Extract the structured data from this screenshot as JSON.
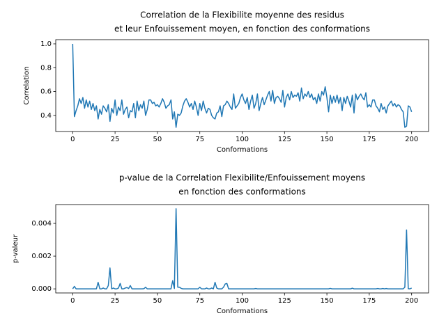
{
  "chart_data": [
    {
      "type": "line",
      "title": [
        "Correlation de la Flexibilite moyenne des residus",
        "et leur Enfouissement moyen, en fonction des conformations"
      ],
      "xlabel": "Conformations",
      "ylabel": "Correlation",
      "xlim": [
        -10,
        210
      ],
      "ylim": [
        0.265,
        1.035
      ],
      "xticks": [
        0,
        25,
        50,
        75,
        100,
        125,
        150,
        175,
        200
      ],
      "yticks": [
        0.4,
        0.6,
        0.8,
        {
          "value": 1,
          "label": "1.0"
        }
      ],
      "x": [
        0,
        1,
        2,
        3,
        4,
        5,
        6,
        7,
        8,
        9,
        10,
        11,
        12,
        13,
        14,
        15,
        16,
        17,
        18,
        19,
        20,
        21,
        22,
        23,
        24,
        25,
        26,
        27,
        28,
        29,
        30,
        31,
        32,
        33,
        34,
        35,
        36,
        37,
        38,
        39,
        40,
        41,
        42,
        43,
        44,
        45,
        46,
        47,
        48,
        49,
        50,
        51,
        52,
        53,
        54,
        55,
        56,
        57,
        58,
        59,
        60,
        61,
        62,
        63,
        64,
        65,
        66,
        67,
        68,
        69,
        70,
        71,
        72,
        73,
        74,
        75,
        76,
        77,
        78,
        79,
        80,
        81,
        82,
        83,
        84,
        85,
        86,
        87,
        88,
        89,
        90,
        91,
        92,
        93,
        94,
        95,
        96,
        97,
        98,
        99,
        100,
        101,
        102,
        103,
        104,
        105,
        106,
        107,
        108,
        109,
        110,
        111,
        112,
        113,
        114,
        115,
        116,
        117,
        118,
        119,
        120,
        121,
        122,
        123,
        124,
        125,
        126,
        127,
        128,
        129,
        130,
        131,
        132,
        133,
        134,
        135,
        136,
        137,
        138,
        139,
        140,
        141,
        142,
        143,
        144,
        145,
        146,
        147,
        148,
        149,
        150,
        151,
        152,
        153,
        154,
        155,
        156,
        157,
        158,
        159,
        160,
        161,
        162,
        163,
        164,
        165,
        166,
        167,
        168,
        169,
        170,
        171,
        172,
        173,
        174,
        175,
        176,
        177,
        178,
        179,
        180,
        181,
        182,
        183,
        184,
        185,
        186,
        187,
        188,
        189,
        190,
        191,
        192,
        193,
        194,
        195,
        196,
        197,
        198,
        199,
        200
      ],
      "color": "#1f77b4",
      "values": [
        1.0,
        0.39,
        0.44,
        0.48,
        0.54,
        0.5,
        0.55,
        0.46,
        0.53,
        0.47,
        0.52,
        0.45,
        0.5,
        0.44,
        0.48,
        0.37,
        0.45,
        0.41,
        0.48,
        0.46,
        0.43,
        0.49,
        0.35,
        0.46,
        0.42,
        0.53,
        0.4,
        0.47,
        0.44,
        0.53,
        0.41,
        0.45,
        0.47,
        0.38,
        0.44,
        0.43,
        0.5,
        0.38,
        0.52,
        0.44,
        0.49,
        0.46,
        0.52,
        0.4,
        0.45,
        0.53,
        0.53,
        0.5,
        0.51,
        0.48,
        0.49,
        0.47,
        0.5,
        0.54,
        0.51,
        0.46,
        0.48,
        0.49,
        0.53,
        0.37,
        0.43,
        0.3,
        0.41,
        0.4,
        0.42,
        0.48,
        0.52,
        0.54,
        0.51,
        0.47,
        0.5,
        0.45,
        0.52,
        0.47,
        0.4,
        0.5,
        0.44,
        0.52,
        0.46,
        0.42,
        0.46,
        0.45,
        0.4,
        0.38,
        0.37,
        0.42,
        0.43,
        0.48,
        0.39,
        0.48,
        0.49,
        0.52,
        0.5,
        0.47,
        0.45,
        0.58,
        0.46,
        0.48,
        0.5,
        0.55,
        0.58,
        0.53,
        0.5,
        0.55,
        0.45,
        0.52,
        0.57,
        0.46,
        0.5,
        0.58,
        0.44,
        0.5,
        0.55,
        0.49,
        0.53,
        0.57,
        0.6,
        0.52,
        0.61,
        0.5,
        0.55,
        0.56,
        0.54,
        0.51,
        0.61,
        0.47,
        0.55,
        0.58,
        0.53,
        0.6,
        0.55,
        0.57,
        0.56,
        0.59,
        0.52,
        0.63,
        0.54,
        0.58,
        0.56,
        0.6,
        0.55,
        0.58,
        0.53,
        0.55,
        0.5,
        0.58,
        0.52,
        0.6,
        0.57,
        0.64,
        0.55,
        0.43,
        0.57,
        0.5,
        0.56,
        0.51,
        0.57,
        0.5,
        0.55,
        0.44,
        0.55,
        0.5,
        0.56,
        0.52,
        0.47,
        0.57,
        0.42,
        0.58,
        0.53,
        0.56,
        0.58,
        0.55,
        0.53,
        0.59,
        0.47,
        0.49,
        0.47,
        0.53,
        0.53,
        0.48,
        0.46,
        0.43,
        0.5,
        0.45,
        0.47,
        0.42,
        0.48,
        0.5,
        0.52,
        0.48,
        0.5,
        0.47,
        0.49,
        0.48,
        0.45,
        0.43,
        0.3,
        0.31,
        0.48,
        0.47,
        0.43
      ]
    },
    {
      "type": "line",
      "title": [
        "p-value de la Correlation Flexibilite/Enfouissement moyens",
        "en fonction des conformations"
      ],
      "xlabel": "Conformations",
      "ylabel": "p-valeur",
      "xlim": [
        -10,
        210
      ],
      "ylim": [
        -0.00025,
        0.00515
      ],
      "xticks": [
        0,
        25,
        50,
        75,
        100,
        125,
        150,
        175,
        200
      ],
      "yticks": [
        {
          "value": 0,
          "label": "0.000"
        },
        {
          "value": 0.002,
          "label": "0.002"
        },
        {
          "value": 0.004,
          "label": "0.004"
        }
      ],
      "x": [
        0,
        1,
        2,
        3,
        4,
        5,
        6,
        7,
        8,
        9,
        10,
        11,
        12,
        13,
        14,
        15,
        16,
        17,
        18,
        19,
        20,
        21,
        22,
        23,
        24,
        25,
        26,
        27,
        28,
        29,
        30,
        31,
        32,
        33,
        34,
        35,
        36,
        37,
        38,
        39,
        40,
        41,
        42,
        43,
        44,
        45,
        46,
        47,
        48,
        49,
        50,
        51,
        52,
        53,
        54,
        55,
        56,
        57,
        58,
        59,
        60,
        61,
        62,
        63,
        64,
        65,
        66,
        67,
        68,
        69,
        70,
        71,
        72,
        73,
        74,
        75,
        76,
        77,
        78,
        79,
        80,
        81,
        82,
        83,
        84,
        85,
        86,
        87,
        88,
        89,
        90,
        91,
        92,
        93,
        94,
        95,
        96,
        97,
        98,
        99,
        100,
        101,
        102,
        103,
        104,
        105,
        106,
        107,
        108,
        109,
        110,
        111,
        112,
        113,
        114,
        115,
        116,
        117,
        118,
        119,
        120,
        121,
        122,
        123,
        124,
        125,
        126,
        127,
        128,
        129,
        130,
        131,
        132,
        133,
        134,
        135,
        136,
        137,
        138,
        139,
        140,
        141,
        142,
        143,
        144,
        145,
        146,
        147,
        148,
        149,
        150,
        151,
        152,
        153,
        154,
        155,
        156,
        157,
        158,
        159,
        160,
        161,
        162,
        163,
        164,
        165,
        166,
        167,
        168,
        169,
        170,
        171,
        172,
        173,
        174,
        175,
        176,
        177,
        178,
        179,
        180,
        181,
        182,
        183,
        184,
        185,
        186,
        187,
        188,
        189,
        190,
        191,
        192,
        193,
        194,
        195,
        196,
        197,
        198,
        199,
        200
      ],
      "color": "#1f77b4",
      "values": [
        0,
        0.00015,
        0,
        0,
        0,
        0,
        0,
        0,
        0,
        0,
        0,
        0,
        0,
        0,
        0,
        0.0004,
        0,
        0,
        5e-05,
        0,
        0,
        0.0002,
        0.00128,
        0,
        5e-05,
        0,
        0,
        5e-05,
        0.00033,
        0,
        0,
        5e-05,
        8e-05,
        2e-05,
        0.0002,
        0,
        0,
        0,
        0,
        0,
        0,
        0,
        1e-05,
        0.0001,
        0,
        0,
        0,
        0,
        0,
        0,
        0,
        0,
        0,
        0,
        0,
        0,
        0,
        0,
        0,
        0.0005,
        2e-05,
        0.0049,
        0.0001,
        0.0001,
        3e-05,
        0,
        0,
        0,
        0,
        0,
        0,
        0,
        0,
        0,
        0,
        0.0001,
        0,
        0,
        0,
        5e-05,
        0,
        0,
        5e-05,
        0,
        0.0004,
        5e-05,
        0,
        0,
        0,
        0.0001,
        0.0003,
        0.00033,
        0,
        0,
        0,
        0,
        0,
        0,
        0,
        0,
        0,
        0,
        0,
        0,
        0,
        0,
        0,
        0,
        2e-05,
        0,
        0,
        0,
        0,
        0,
        0,
        0,
        0,
        0,
        0,
        0,
        0,
        0,
        0,
        0,
        0,
        0,
        0,
        0,
        0,
        0,
        0,
        0,
        0,
        0,
        0,
        0,
        0,
        0,
        0,
        0,
        0,
        0,
        0,
        0,
        0,
        0,
        0,
        0,
        0,
        0,
        0,
        0,
        3e-05,
        0,
        0,
        0,
        0,
        0,
        0,
        0,
        0,
        0,
        0,
        0,
        0,
        4e-05,
        0,
        0,
        0,
        0,
        0,
        0,
        0,
        0,
        0,
        0,
        0,
        0,
        0,
        0,
        2e-05,
        0,
        0,
        2e-05,
        0,
        2e-05,
        0,
        0,
        0,
        0,
        0,
        0,
        0,
        0,
        0,
        0,
        0.0001,
        0.0036,
        1e-05,
        0,
        5e-05
      ]
    }
  ]
}
